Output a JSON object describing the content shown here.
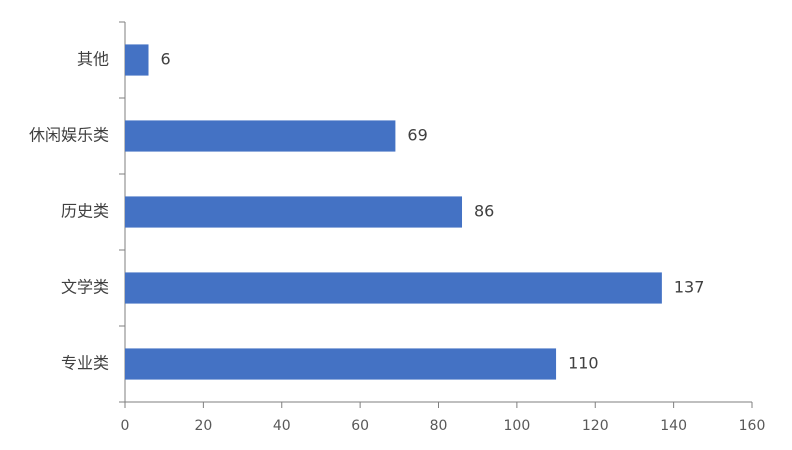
{
  "chart_data": {
    "type": "bar",
    "orientation": "horizontal",
    "categories": [
      "其他",
      "休闲娱乐类",
      "历史类",
      "文学类",
      "专业类"
    ],
    "values": [
      6,
      69,
      86,
      137,
      110
    ],
    "color": "#4472c4",
    "xlim": [
      0,
      160
    ],
    "xticks": [
      0,
      20,
      40,
      60,
      80,
      100,
      120,
      140,
      160
    ],
    "grid": false
  }
}
